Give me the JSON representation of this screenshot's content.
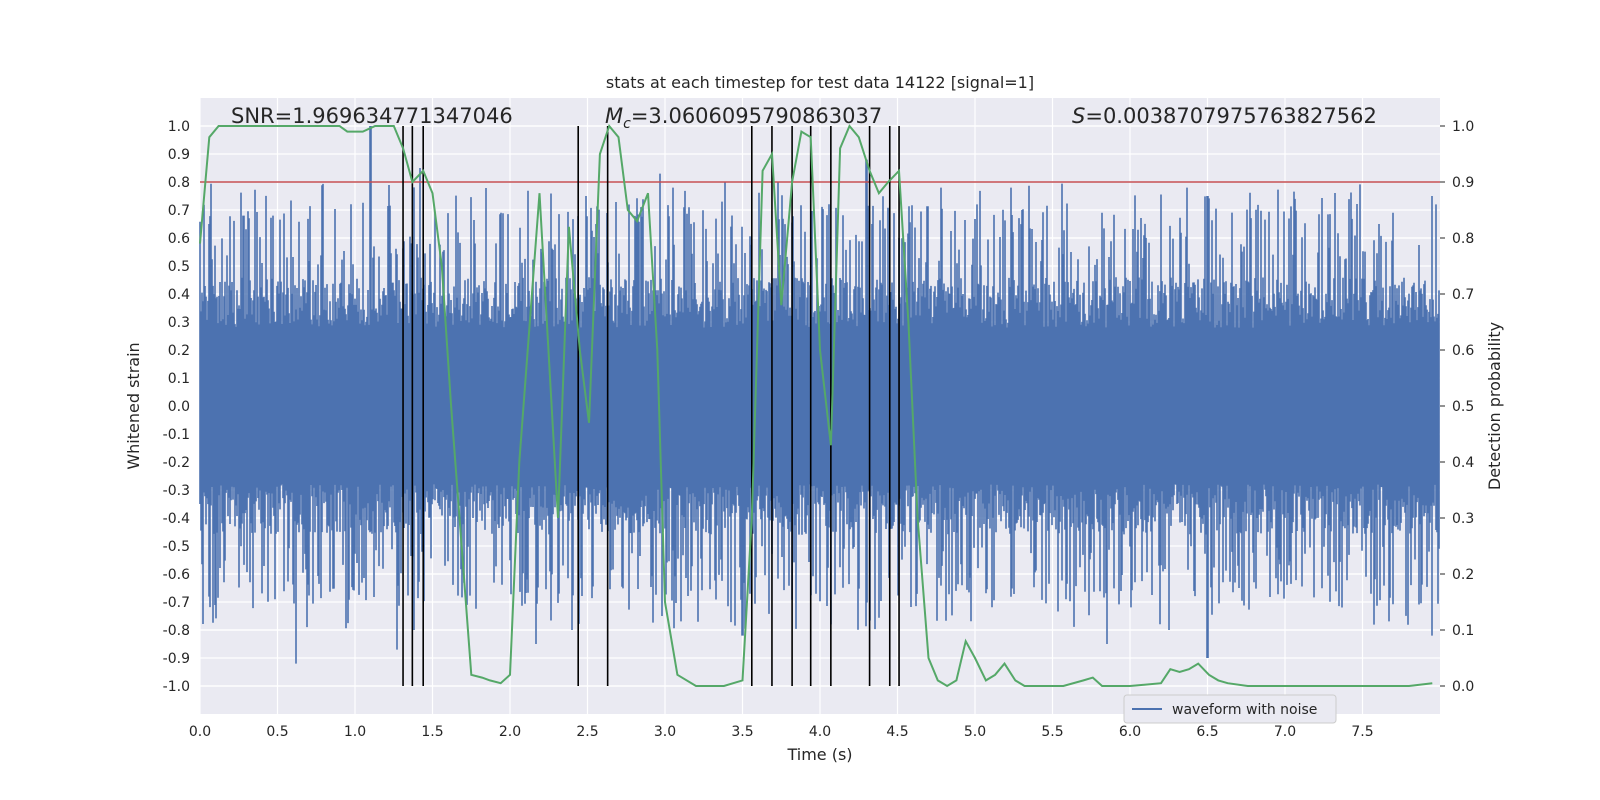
{
  "chart_data": {
    "type": "line",
    "title": "stats at each timestep for test data 14122 [signal=1]",
    "xlabel": "Time (s)",
    "ylabel_left": "Whitened strain",
    "ylabel_right": "Detection probability",
    "xlim": [
      0.0,
      8.0
    ],
    "ylim_left": [
      -1.1,
      1.1
    ],
    "ylim_right": [
      -0.05,
      1.05
    ],
    "x_ticks": [
      0.0,
      0.5,
      1.0,
      1.5,
      2.0,
      2.5,
      3.0,
      3.5,
      4.0,
      4.5,
      5.0,
      5.5,
      6.0,
      6.5,
      7.0,
      7.5
    ],
    "x_tick_labels": [
      "0.0",
      "0.5",
      "1.0",
      "1.5",
      "2.0",
      "2.5",
      "3.0",
      "3.5",
      "4.0",
      "4.5",
      "5.0",
      "5.5",
      "6.0",
      "6.5",
      "7.0",
      "7.5"
    ],
    "y_left_ticks": [
      -1.0,
      -0.9,
      -0.8,
      -0.7,
      -0.6,
      -0.5,
      -0.4,
      -0.3,
      -0.2,
      -0.1,
      0.0,
      0.1,
      0.2,
      0.3,
      0.4,
      0.5,
      0.6,
      0.7,
      0.8,
      0.9,
      1.0
    ],
    "y_left_tick_labels": [
      "-1.0",
      "-0.9",
      "-0.8",
      "-0.7",
      "-0.6",
      "-0.5",
      "-0.4",
      "-0.3",
      "-0.2",
      "-0.1",
      "0.0",
      "0.1",
      "0.2",
      "0.3",
      "0.4",
      "0.5",
      "0.6",
      "0.7",
      "0.8",
      "0.9",
      "1.0"
    ],
    "y_right_ticks": [
      0.0,
      0.1,
      0.2,
      0.3,
      0.4,
      0.5,
      0.6,
      0.7,
      0.8,
      0.9,
      1.0
    ],
    "y_right_tick_labels": [
      "0.0",
      "0.1",
      "0.2",
      "0.3",
      "0.4",
      "0.5",
      "0.6",
      "0.7",
      "0.8",
      "0.9",
      "1.0"
    ],
    "grid": true,
    "legend": {
      "placement": "lower-right",
      "entries": [
        "waveform with noise"
      ]
    },
    "annotations": {
      "snr": "SNR=1.969634771347046",
      "mc_symbol": "M",
      "mc_subscript": "c",
      "mc_value": "=3.0606095790863037",
      "s_symbol": "S",
      "s_value": "=0.003870797576382756​2"
    },
    "threshold_line": {
      "axis": "right",
      "y": 0.9,
      "color": "#c44e52"
    },
    "detection_markers_x": [
      1.31,
      1.37,
      1.44,
      2.44,
      2.63,
      3.56,
      3.69,
      3.82,
      3.94,
      4.07,
      4.32,
      4.45,
      4.51
    ],
    "series": [
      {
        "name": "waveform with noise",
        "axis": "left",
        "color": "#4c72b0",
        "envelope_description_values": {
          "x": [
            0.0,
            8.0
          ],
          "typical_amplitude": 0.5,
          "peaks_upper": [
            [
              0.06,
              0.65
            ],
            [
              0.28,
              0.68
            ],
            [
              0.47,
              0.68
            ],
            [
              1.1,
              1.0
            ],
            [
              1.42,
              0.85
            ],
            [
              2.49,
              0.75
            ],
            [
              2.97,
              0.83
            ],
            [
              3.05,
              0.78
            ],
            [
              3.37,
              0.73
            ],
            [
              3.73,
              0.8
            ],
            [
              4.3,
              0.88
            ],
            [
              4.78,
              0.78
            ],
            [
              6.37,
              0.78
            ],
            [
              6.5,
              0.75
            ],
            [
              7.95,
              0.75
            ]
          ],
          "peaks_lower": [
            [
              0.62,
              -0.92
            ],
            [
              1.27,
              -0.87
            ],
            [
              1.38,
              -0.8
            ],
            [
              2.17,
              -0.85
            ],
            [
              2.4,
              -0.8
            ],
            [
              2.98,
              -0.75
            ],
            [
              3.5,
              -0.82
            ],
            [
              4.07,
              -0.78
            ],
            [
              5.85,
              -0.85
            ],
            [
              6.25,
              -0.8
            ],
            [
              6.5,
              -0.9
            ],
            [
              7.95,
              -0.82
            ]
          ]
        }
      },
      {
        "name": "",
        "axis": "right",
        "color": "#55a868",
        "x": [
          0.0,
          0.06,
          0.12,
          0.5,
          0.9,
          0.95,
          1.05,
          1.13,
          1.25,
          1.31,
          1.37,
          1.44,
          1.5,
          1.56,
          1.62,
          1.75,
          1.82,
          1.87,
          1.94,
          2.0,
          2.06,
          2.19,
          2.31,
          2.38,
          2.45,
          2.51,
          2.58,
          2.64,
          2.7,
          2.76,
          2.82,
          2.89,
          2.95,
          3.0,
          3.08,
          3.2,
          3.38,
          3.5,
          3.56,
          3.63,
          3.69,
          3.75,
          3.82,
          3.88,
          3.94,
          4.0,
          4.07,
          4.13,
          4.19,
          4.25,
          4.32,
          4.38,
          4.44,
          4.51,
          4.57,
          4.63,
          4.7,
          4.76,
          4.82,
          4.88,
          4.94,
          5.0,
          5.07,
          5.13,
          5.19,
          5.26,
          5.32,
          5.45,
          5.57,
          5.7,
          5.76,
          5.82,
          6.0,
          6.2,
          6.26,
          6.32,
          6.38,
          6.44,
          6.51,
          6.57,
          6.63,
          6.76,
          7.0,
          7.3,
          7.5,
          7.8,
          7.95
        ],
        "y": [
          0.79,
          0.98,
          1.0,
          1.0,
          1.0,
          0.99,
          0.99,
          1.0,
          1.0,
          0.96,
          0.9,
          0.92,
          0.88,
          0.75,
          0.5,
          0.02,
          0.015,
          0.01,
          0.005,
          0.02,
          0.4,
          0.88,
          0.3,
          0.82,
          0.6,
          0.47,
          0.95,
          1.0,
          0.98,
          0.85,
          0.83,
          0.88,
          0.6,
          0.15,
          0.02,
          0.0,
          0.0,
          0.01,
          0.3,
          0.92,
          0.95,
          0.68,
          0.9,
          0.99,
          0.98,
          0.6,
          0.43,
          0.96,
          1.0,
          0.98,
          0.92,
          0.88,
          0.9,
          0.92,
          0.65,
          0.3,
          0.05,
          0.01,
          0.0,
          0.01,
          0.08,
          0.05,
          0.01,
          0.02,
          0.04,
          0.01,
          0.0,
          0.0,
          0.0,
          0.01,
          0.015,
          0.0,
          0.0,
          0.005,
          0.03,
          0.025,
          0.03,
          0.04,
          0.02,
          0.01,
          0.005,
          0.0,
          0.0,
          0.0,
          0.0,
          0.0,
          0.005
        ]
      }
    ]
  }
}
